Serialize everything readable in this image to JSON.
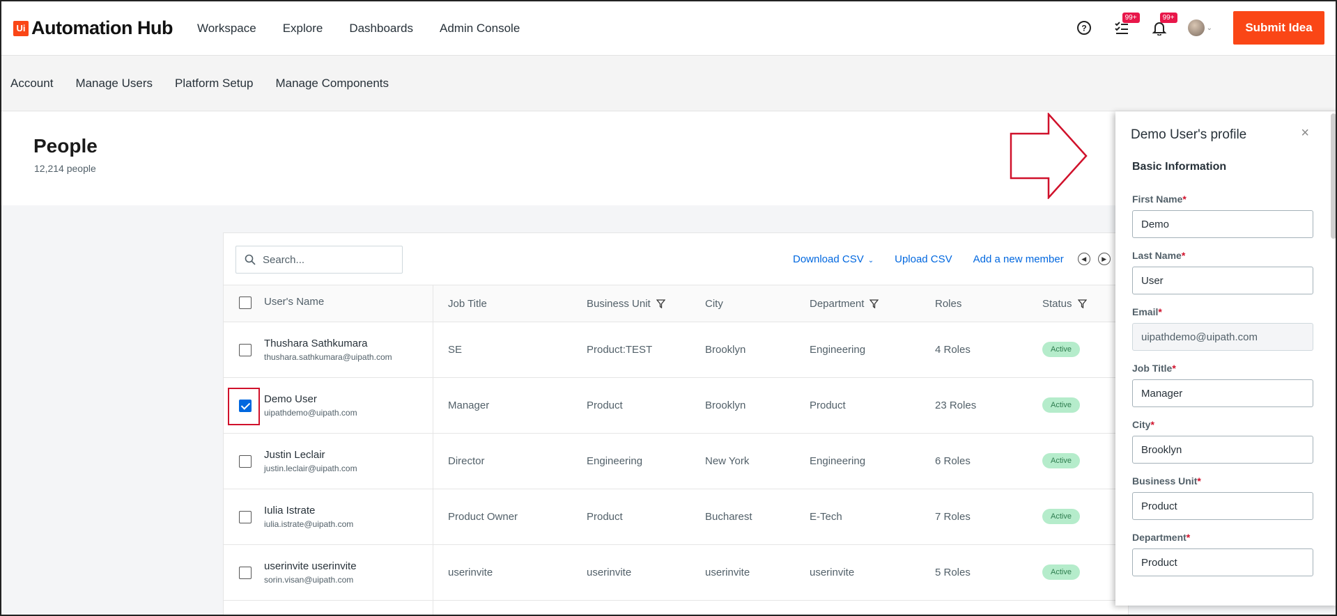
{
  "app": {
    "logo_mark": "Ui",
    "logo_text": "Automation Hub"
  },
  "topnav": [
    "Workspace",
    "Explore",
    "Dashboards",
    "Admin Console"
  ],
  "top_icons": {
    "tasks_badge": "99+",
    "notifications_badge": "99+"
  },
  "submit_label": "Submit Idea",
  "subnav": [
    "Account",
    "Manage Users",
    "Platform Setup",
    "Manage Components"
  ],
  "page": {
    "title": "People",
    "count": "12,214 people"
  },
  "search": {
    "placeholder": "Search..."
  },
  "actions": {
    "download": "Download CSV",
    "upload": "Upload CSV",
    "add": "Add a new member"
  },
  "columns": {
    "name": "User's Name",
    "job": "Job Title",
    "bu": "Business Unit",
    "city": "City",
    "dept": "Department",
    "roles": "Roles",
    "status": "Status"
  },
  "rows": [
    {
      "name": "Thushara Sathkumara",
      "email": "thushara.sathkumara@uipath.com",
      "job": "SE",
      "bu": "Product:TEST",
      "city": "Brooklyn",
      "dept": "Engineering",
      "roles": "4 Roles",
      "status": "Active",
      "checked": false
    },
    {
      "name": "Demo User",
      "email": "uipathdemo@uipath.com",
      "job": "Manager",
      "bu": "Product",
      "city": "Brooklyn",
      "dept": "Product",
      "roles": "23 Roles",
      "status": "Active",
      "checked": true
    },
    {
      "name": "Justin Leclair",
      "email": "justin.leclair@uipath.com",
      "job": "Director",
      "bu": "Engineering",
      "city": "New York",
      "dept": "Engineering",
      "roles": "6 Roles",
      "status": "Active",
      "checked": false
    },
    {
      "name": "Iulia Istrate",
      "email": "iulia.istrate@uipath.com",
      "job": "Product Owner",
      "bu": "Product",
      "city": "Bucharest",
      "dept": "E-Tech",
      "roles": "7 Roles",
      "status": "Active",
      "checked": false
    },
    {
      "name": "userinvite userinvite",
      "email": "sorin.visan@uipath.com",
      "job": "userinvite",
      "bu": "userinvite",
      "city": "userinvite",
      "dept": "userinvite",
      "roles": "5 Roles",
      "status": "Active",
      "checked": false
    }
  ],
  "drawer": {
    "title": "Demo User's profile",
    "section": "Basic Information",
    "fields": [
      {
        "label": "First Name",
        "value": "Demo",
        "required_mark": "*"
      },
      {
        "label": "Last Name",
        "value": "User",
        "required_mark": "*"
      },
      {
        "label": "Email",
        "value": "uipathdemo@uipath.com",
        "required_mark": "*"
      },
      {
        "label": "Job Title",
        "value": "Manager",
        "required_mark": "*"
      },
      {
        "label": "City",
        "value": "Brooklyn",
        "required_mark": "*"
      },
      {
        "label": "Business Unit",
        "value": "Product",
        "required_mark": "*"
      },
      {
        "label": "Department",
        "value": "Product",
        "required_mark": "*"
      }
    ]
  },
  "colors": {
    "brand": "#fa4616",
    "link": "#0067df",
    "annotation": "#d0112b",
    "status_bg": "#b5eccb"
  },
  "icons": [
    "help-icon",
    "tasks-icon",
    "bell-icon",
    "search-icon",
    "filter-icon",
    "close-icon",
    "arrow-right-icon"
  ]
}
